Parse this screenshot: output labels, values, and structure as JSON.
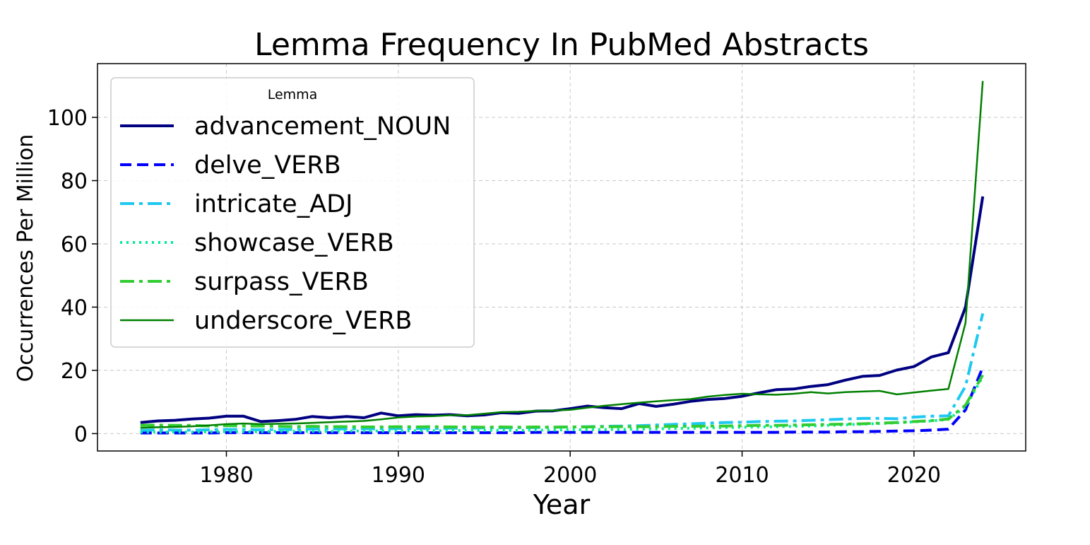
{
  "chart_data": {
    "type": "line",
    "title": "Lemma Frequency In PubMed Abstracts",
    "xlabel": "Year",
    "ylabel": "Occurrences Per Million",
    "xlim": [
      1972.5,
      2026.5
    ],
    "ylim": [
      -5.5,
      117
    ],
    "x_ticks": [
      1980,
      1990,
      2000,
      2010,
      2020
    ],
    "y_ticks": [
      0,
      20,
      40,
      60,
      80,
      100
    ],
    "grid": true,
    "legend": {
      "title": "Lemma",
      "placement": "upper-left"
    },
    "x": [
      1975,
      1976,
      1977,
      1978,
      1979,
      1980,
      1981,
      1982,
      1983,
      1984,
      1985,
      1986,
      1987,
      1988,
      1989,
      1990,
      1991,
      1992,
      1993,
      1994,
      1995,
      1996,
      1997,
      1998,
      1999,
      2000,
      2001,
      2002,
      2003,
      2004,
      2005,
      2006,
      2007,
      2008,
      2009,
      2010,
      2011,
      2012,
      2013,
      2014,
      2015,
      2016,
      2017,
      2018,
      2019,
      2020,
      2021,
      2022,
      2023,
      2024
    ],
    "series": [
      {
        "name": "advancement_NOUN",
        "color": "#000080",
        "style": "solid-thick",
        "values": [
          3.5,
          4.0,
          4.2,
          4.6,
          4.9,
          5.5,
          5.5,
          3.8,
          4.1,
          4.5,
          5.4,
          5.0,
          5.4,
          5.0,
          6.5,
          5.6,
          6.0,
          5.8,
          6.0,
          5.6,
          5.9,
          6.6,
          6.4,
          7.1,
          7.2,
          7.9,
          8.7,
          8.2,
          7.9,
          9.5,
          8.6,
          9.3,
          10.2,
          10.8,
          11.1,
          11.8,
          12.9,
          13.9,
          14.1,
          14.9,
          15.5,
          16.9,
          18.1,
          18.4,
          20.1,
          21.2,
          24.2,
          25.6,
          40.0,
          75.0
        ]
      },
      {
        "name": "delve_VERB",
        "color": "#0000ff",
        "style": "dashed",
        "values": [
          0.2,
          0.2,
          0.2,
          0.2,
          0.2,
          0.3,
          0.3,
          0.3,
          0.3,
          0.3,
          0.3,
          0.3,
          0.3,
          0.3,
          0.3,
          0.3,
          0.3,
          0.3,
          0.3,
          0.3,
          0.3,
          0.3,
          0.3,
          0.4,
          0.4,
          0.4,
          0.4,
          0.4,
          0.4,
          0.4,
          0.4,
          0.4,
          0.4,
          0.4,
          0.4,
          0.4,
          0.4,
          0.4,
          0.5,
          0.5,
          0.5,
          0.6,
          0.6,
          0.7,
          0.8,
          0.9,
          1.1,
          1.4,
          7.5,
          21.0
        ]
      },
      {
        "name": "intricate_ADJ",
        "color": "#1ec8f0",
        "style": "dashdot",
        "values": [
          1.0,
          1.2,
          1.1,
          1.1,
          1.2,
          1.3,
          1.3,
          1.2,
          1.3,
          1.3,
          1.4,
          1.4,
          1.5,
          1.5,
          1.5,
          1.6,
          1.6,
          1.6,
          1.7,
          1.7,
          1.8,
          1.8,
          1.9,
          1.9,
          2.0,
          2.1,
          2.2,
          2.3,
          2.4,
          2.5,
          2.7,
          2.9,
          3.1,
          3.3,
          3.5,
          3.6,
          3.8,
          3.9,
          4.0,
          4.2,
          4.4,
          4.6,
          4.8,
          4.8,
          4.7,
          5.2,
          5.5,
          5.6,
          15.0,
          38.0
        ]
      },
      {
        "name": "showcase_VERB",
        "color": "#00ee99",
        "style": "dotted",
        "values": [
          0.5,
          0.5,
          0.5,
          0.5,
          0.6,
          0.6,
          0.6,
          0.6,
          0.7,
          0.7,
          0.7,
          0.7,
          0.8,
          0.8,
          0.8,
          0.8,
          0.9,
          0.9,
          0.9,
          1.0,
          1.0,
          1.0,
          1.0,
          1.1,
          1.1,
          1.2,
          1.2,
          1.3,
          1.3,
          1.4,
          1.5,
          1.6,
          1.7,
          1.8,
          1.9,
          2.0,
          2.1,
          2.2,
          2.3,
          2.4,
          2.6,
          2.8,
          3.0,
          3.2,
          3.4,
          3.7,
          4.0,
          4.5,
          8.5,
          18.0
        ]
      },
      {
        "name": "surpass_VERB",
        "color": "#32cd32",
        "style": "dashdot",
        "values": [
          2.6,
          2.7,
          2.6,
          2.6,
          2.4,
          2.5,
          2.4,
          2.4,
          2.3,
          2.2,
          2.3,
          2.2,
          2.2,
          2.1,
          2.1,
          2.2,
          2.1,
          2.2,
          2.1,
          2.1,
          2.0,
          2.1,
          2.0,
          2.1,
          2.0,
          2.1,
          2.1,
          2.2,
          2.2,
          2.2,
          2.2,
          2.3,
          2.3,
          2.4,
          2.4,
          2.5,
          2.6,
          2.6,
          2.7,
          2.8,
          2.9,
          3.0,
          3.1,
          3.3,
          3.5,
          3.8,
          4.1,
          4.6,
          9.0,
          18.5
        ]
      },
      {
        "name": "underscore_VERB",
        "color": "#008000",
        "style": "solid-thin",
        "values": [
          1.8,
          2.0,
          2.1,
          2.3,
          2.6,
          3.0,
          3.2,
          3.0,
          3.1,
          3.2,
          3.4,
          3.6,
          3.8,
          4.0,
          4.5,
          5.1,
          5.4,
          5.5,
          5.8,
          5.8,
          6.3,
          6.8,
          6.9,
          7.2,
          7.3,
          7.5,
          8.2,
          8.8,
          9.3,
          9.8,
          10.2,
          10.6,
          10.9,
          11.7,
          12.2,
          12.6,
          12.4,
          12.3,
          12.6,
          13.1,
          12.7,
          13.1,
          13.3,
          13.5,
          12.4,
          13.0,
          13.6,
          14.1,
          35.0,
          111.5
        ]
      }
    ]
  }
}
